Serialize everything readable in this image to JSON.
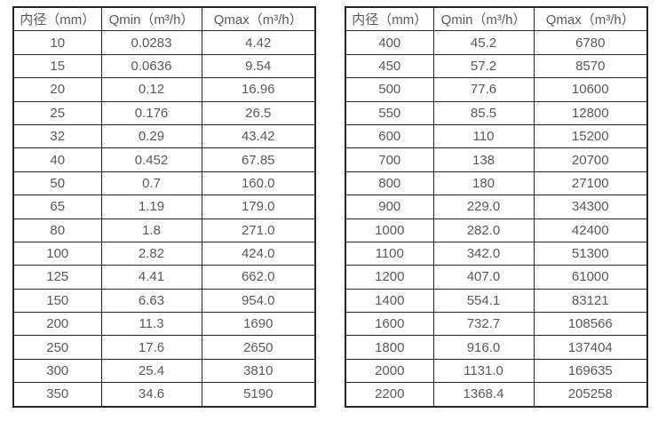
{
  "page": {
    "background": "#ffffff",
    "border_color": "#262626",
    "text_color": "#595959"
  },
  "tables": [
    {
      "name": "flow-rate-table-dn10-350",
      "headers": [
        "内径（mm）",
        "Qmin（m³/h）",
        "Qmax（m³/h）"
      ],
      "rows": [
        [
          "10",
          "0.0283",
          "4.42"
        ],
        [
          "15",
          "0.0636",
          "9.54"
        ],
        [
          "20",
          "0.12",
          "16.96"
        ],
        [
          "25",
          "0.176",
          "26.5"
        ],
        [
          "32",
          "0.29",
          "43.42"
        ],
        [
          "40",
          "0.452",
          "67.85"
        ],
        [
          "50",
          "0.7",
          "160.0"
        ],
        [
          "65",
          "1.19",
          "179.0"
        ],
        [
          "80",
          "1.8",
          "271.0"
        ],
        [
          "100",
          "2.82",
          "424.0"
        ],
        [
          "125",
          "4.41",
          "662.0"
        ],
        [
          "150",
          "6.63",
          "954.0"
        ],
        [
          "200",
          "11.3",
          "1690"
        ],
        [
          "250",
          "17.6",
          "2650"
        ],
        [
          "300",
          "25.4",
          "3810"
        ],
        [
          "350",
          "34.6",
          "5190"
        ]
      ]
    },
    {
      "name": "flow-rate-table-dn400-2200",
      "headers": [
        "内径（mm）",
        "Qmin（m³/h）",
        "Qmax（m³/h）"
      ],
      "rows": [
        [
          "400",
          "45.2",
          "6780"
        ],
        [
          "450",
          "57.2",
          "8570"
        ],
        [
          "500",
          "77.6",
          "10600"
        ],
        [
          "550",
          "85.5",
          "12800"
        ],
        [
          "600",
          "110",
          "15200"
        ],
        [
          "700",
          "138",
          "20700"
        ],
        [
          "800",
          "180",
          "27100"
        ],
        [
          "900",
          "229.0",
          "34300"
        ],
        [
          "1000",
          "282.0",
          "42400"
        ],
        [
          "1100",
          "342.0",
          "51300"
        ],
        [
          "1200",
          "407.0",
          "61000"
        ],
        [
          "1400",
          "554.1",
          "83121"
        ],
        [
          "1600",
          "732.7",
          "108566"
        ],
        [
          "1800",
          "916.0",
          "137404"
        ],
        [
          "2000",
          "1131.0",
          "169635"
        ],
        [
          "2200",
          "1368.4",
          "205258"
        ]
      ]
    }
  ]
}
